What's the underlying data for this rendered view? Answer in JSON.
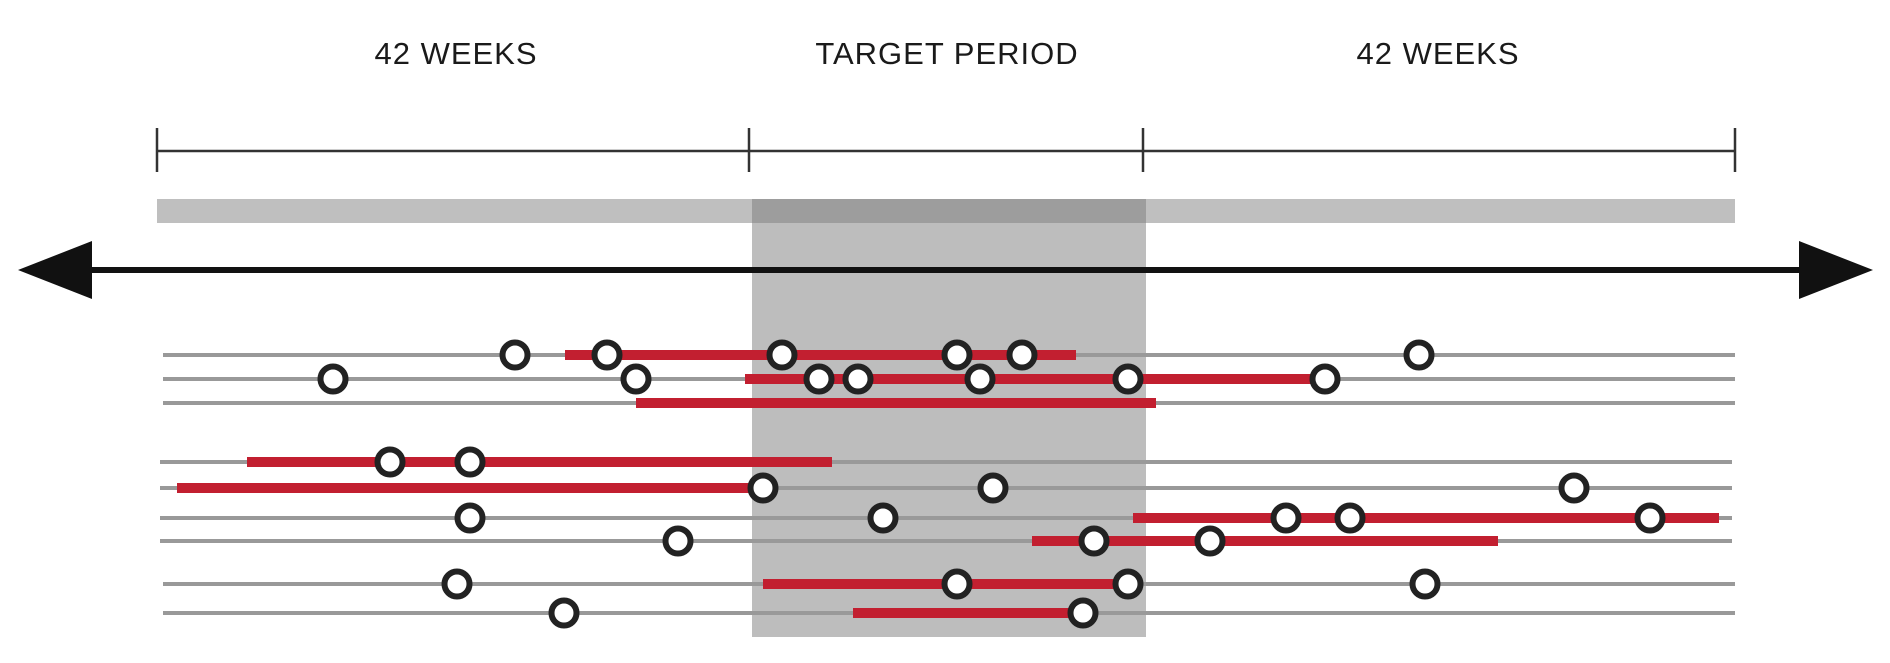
{
  "labels": {
    "left": "42 WEEKS",
    "center": "TARGET PERIOD",
    "right": "42 WEEKS"
  },
  "colors": {
    "text": "#1a1a1a",
    "bracket": "#333333",
    "lightband": "#bfbfbf",
    "target_shade": "#bdbdbd",
    "target_band": "#9d9d9d",
    "timeline_line": "#999999",
    "red_bar": "#c21f30",
    "marker_stroke": "#222222",
    "marker_fill": "#ffffff",
    "arrow": "#111111"
  }
}
